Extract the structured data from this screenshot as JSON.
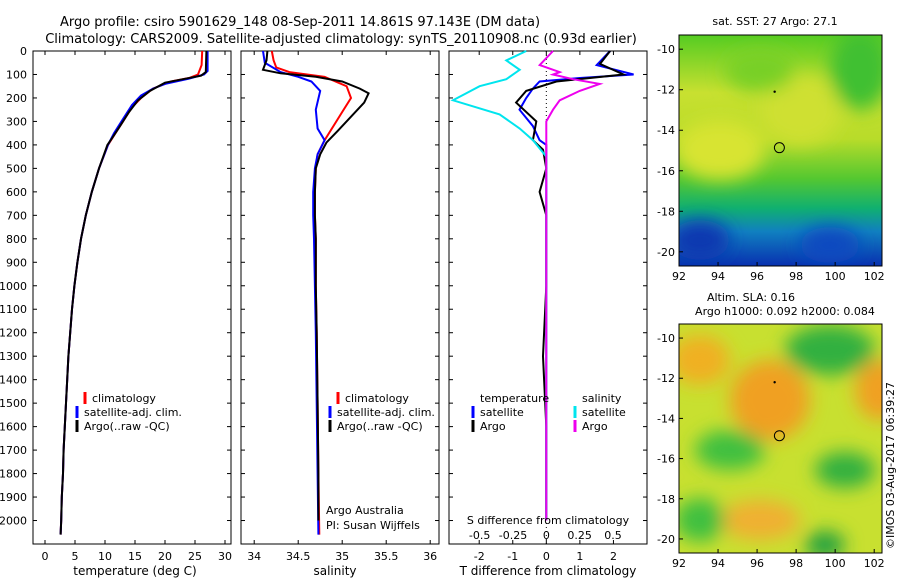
{
  "header": {
    "title_line1": "Argo profile: csiro 5901629_148 08-Sep-2011 14.861S 97.143E (DM data)",
    "title_line2": "Climatology: CARS2009. Satellite-adjusted climatology: synTS_20110908.nc (0.93d earlier)"
  },
  "side_text": {
    "stamp": "©IMOS 03-Aug-2017 06:39:27"
  },
  "colors": {
    "climatology": "#ff0000",
    "satellite": "#0000ff",
    "argo": "#000000",
    "salinity_satellite": "#00e5ee",
    "salinity_argo": "#ee00ee"
  },
  "chart_data": [
    {
      "type": "line",
      "id": "temperature",
      "xlabel": "temperature (deg C)",
      "ylim": [
        2100,
        0
      ],
      "xlim": [
        -2,
        31
      ],
      "x_ticks": [
        "0",
        "5",
        "10",
        "15",
        "20",
        "25",
        "30"
      ],
      "x_tick_values": [
        0,
        5,
        10,
        15,
        20,
        25,
        30
      ],
      "y_ticks": [
        "0",
        "100",
        "200",
        "300",
        "400",
        "500",
        "600",
        "700",
        "800",
        "900",
        "1000",
        "1100",
        "1200",
        "1300",
        "1400",
        "1500",
        "1600",
        "1700",
        "1800",
        "1900",
        "2000"
      ],
      "y_tick_values": [
        0,
        100,
        200,
        300,
        400,
        500,
        600,
        700,
        800,
        900,
        1000,
        1100,
        1200,
        1300,
        1400,
        1500,
        1600,
        1700,
        1800,
        1900,
        2000
      ],
      "legend": [
        "climatology",
        "satellite-adj. clim.",
        "Argo(..raw -QC)"
      ],
      "series": [
        {
          "name": "climatology",
          "color": "#ff0000",
          "points": [
            [
              26.2,
              0
            ],
            [
              26.1,
              60
            ],
            [
              25.5,
              100
            ],
            [
              24,
              115
            ],
            [
              21,
              130
            ],
            [
              18,
              160
            ],
            [
              16,
              200
            ],
            [
              14.5,
              240
            ],
            [
              13,
              300
            ],
            [
              11.5,
              360
            ],
            [
              10.5,
              400
            ],
            [
              9,
              500
            ],
            [
              7.8,
              600
            ],
            [
              6.8,
              700
            ],
            [
              6.0,
              800
            ],
            [
              5.4,
              900
            ],
            [
              4.9,
              1000
            ],
            [
              4.5,
              1100
            ],
            [
              4.2,
              1200
            ],
            [
              3.9,
              1300
            ],
            [
              3.7,
              1400
            ],
            [
              3.5,
              1500
            ],
            [
              3.3,
              1600
            ],
            [
              3.1,
              1700
            ],
            [
              3.0,
              1800
            ],
            [
              2.8,
              1900
            ],
            [
              2.7,
              2000
            ],
            [
              2.6,
              2060
            ]
          ]
        },
        {
          "name": "satellite-adj. clim.",
          "color": "#0000ff",
          "points": [
            [
              27.1,
              0
            ],
            [
              27.1,
              85
            ],
            [
              26.5,
              100
            ],
            [
              24,
              118
            ],
            [
              20,
              140
            ],
            [
              18,
              160
            ],
            [
              16,
              190
            ],
            [
              14.5,
              230
            ],
            [
              13,
              290
            ],
            [
              11.5,
              350
            ],
            [
              10.5,
              400
            ],
            [
              9,
              500
            ],
            [
              7.8,
              600
            ],
            [
              6.8,
              700
            ],
            [
              6.0,
              800
            ],
            [
              5.4,
              900
            ],
            [
              4.9,
              1000
            ],
            [
              4.5,
              1100
            ],
            [
              4.2,
              1200
            ],
            [
              3.9,
              1300
            ],
            [
              3.7,
              1400
            ],
            [
              3.5,
              1500
            ],
            [
              3.3,
              1600
            ],
            [
              3.1,
              1700
            ],
            [
              3.0,
              1800
            ],
            [
              2.8,
              1900
            ],
            [
              2.7,
              2000
            ],
            [
              2.6,
              2060
            ]
          ]
        },
        {
          "name": "Argo(..raw -QC)",
          "color": "#000000",
          "points": [
            [
              26.9,
              0
            ],
            [
              26.8,
              90
            ],
            [
              26,
              105
            ],
            [
              23,
              120
            ],
            [
              20,
              135
            ],
            [
              17.5,
              170
            ],
            [
              15.5,
              210
            ],
            [
              14,
              260
            ],
            [
              12.5,
              320
            ],
            [
              11.2,
              370
            ],
            [
              10.4,
              400
            ],
            [
              9,
              500
            ],
            [
              7.8,
              600
            ],
            [
              6.8,
              700
            ],
            [
              6.0,
              800
            ],
            [
              5.4,
              900
            ],
            [
              4.9,
              1000
            ],
            [
              4.5,
              1100
            ],
            [
              4.2,
              1200
            ],
            [
              3.9,
              1300
            ],
            [
              3.7,
              1400
            ],
            [
              3.5,
              1500
            ],
            [
              3.3,
              1600
            ],
            [
              3.1,
              1700
            ],
            [
              3.0,
              1800
            ],
            [
              2.8,
              1900
            ],
            [
              2.7,
              2000
            ],
            [
              2.6,
              2060
            ]
          ]
        }
      ]
    },
    {
      "type": "line",
      "id": "salinity",
      "xlabel": "salinity",
      "ylim": [
        2100,
        0
      ],
      "xlim": [
        33.85,
        36.1
      ],
      "x_ticks": [
        "34",
        "34.5",
        "35",
        "35.5",
        "36"
      ],
      "x_tick_values": [
        34,
        34.5,
        35,
        35.5,
        36
      ],
      "legend": [
        "climatology",
        "satellite-adj. clim.",
        "Argo(..raw -QC)"
      ],
      "annotation_line1": "Argo Australia",
      "annotation_line2": "PI: Susan Wijffels",
      "series": [
        {
          "name": "climatology",
          "color": "#ff0000",
          "points": [
            [
              34.2,
              0
            ],
            [
              34.22,
              40
            ],
            [
              34.25,
              70
            ],
            [
              34.4,
              90
            ],
            [
              34.8,
              110
            ],
            [
              35.05,
              150
            ],
            [
              35.1,
              200
            ],
            [
              35.0,
              260
            ],
            [
              34.9,
              320
            ],
            [
              34.8,
              380
            ],
            [
              34.72,
              440
            ],
            [
              34.7,
              500
            ],
            [
              34.69,
              600
            ],
            [
              34.69,
              700
            ],
            [
              34.7,
              800
            ],
            [
              34.7,
              1000
            ],
            [
              34.71,
              1200
            ],
            [
              34.72,
              1500
            ],
            [
              34.73,
              1800
            ],
            [
              34.74,
              2060
            ]
          ]
        },
        {
          "name": "satellite-adj. clim.",
          "color": "#0000ff",
          "points": [
            [
              34.1,
              0
            ],
            [
              34.12,
              50
            ],
            [
              34.3,
              90
            ],
            [
              34.5,
              110
            ],
            [
              34.65,
              130
            ],
            [
              34.75,
              170
            ],
            [
              34.7,
              250
            ],
            [
              34.72,
              330
            ],
            [
              34.8,
              380
            ],
            [
              34.72,
              440
            ],
            [
              34.69,
              500
            ],
            [
              34.67,
              600
            ],
            [
              34.67,
              700
            ],
            [
              34.68,
              800
            ],
            [
              34.69,
              1000
            ],
            [
              34.7,
              1200
            ],
            [
              34.71,
              1500
            ],
            [
              34.72,
              1800
            ],
            [
              34.73,
              2060
            ]
          ]
        },
        {
          "name": "Argo(..raw -QC)",
          "color": "#000000",
          "points": [
            [
              34.15,
              0
            ],
            [
              34.14,
              40
            ],
            [
              34.1,
              80
            ],
            [
              34.3,
              95
            ],
            [
              34.7,
              110
            ],
            [
              35.0,
              130
            ],
            [
              35.2,
              160
            ],
            [
              35.3,
              180
            ],
            [
              35.25,
              220
            ],
            [
              35.1,
              280
            ],
            [
              34.95,
              340
            ],
            [
              34.82,
              390
            ],
            [
              34.75,
              440
            ],
            [
              34.7,
              500
            ],
            [
              34.69,
              600
            ],
            [
              34.69,
              700
            ],
            [
              34.7,
              800
            ],
            [
              34.7,
              1000
            ],
            [
              34.71,
              1200
            ],
            [
              34.72,
              1500
            ],
            [
              34.73,
              1800
            ],
            [
              34.73,
              2000
            ]
          ]
        }
      ]
    },
    {
      "type": "line",
      "id": "difference",
      "xlabel": "T difference from climatology",
      "xlabel_top": "S difference from climatology",
      "ylim": [
        2100,
        0
      ],
      "xlim": [
        -2.9,
        3.0
      ],
      "x_ticks": [
        "-2",
        "-1",
        "0",
        "1",
        "2"
      ],
      "x_tick_values": [
        -2,
        -1,
        0,
        1,
        2
      ],
      "s_ticks": [
        "-0.5",
        "-0.25",
        "0",
        "0.25",
        "0.5"
      ],
      "s_tick_values": [
        -0.5,
        -0.25,
        0,
        0.25,
        0.5
      ],
      "legend_temperature": {
        "title": "temperature",
        "items": [
          "satellite",
          "Argo"
        ]
      },
      "legend_salinity": {
        "title": "salinity",
        "items": [
          "satellite",
          "Argo"
        ]
      },
      "series": [
        {
          "name": "temperature satellite",
          "color": "#0000ff",
          "points": [
            [
              1.9,
              0
            ],
            [
              1.5,
              60
            ],
            [
              2.6,
              100
            ],
            [
              1.0,
              115
            ],
            [
              -0.2,
              130
            ],
            [
              -0.4,
              160
            ],
            [
              -0.6,
              200
            ],
            [
              -0.8,
              250
            ],
            [
              -0.4,
              320
            ],
            [
              -0.2,
              380
            ],
            [
              0,
              400
            ],
            [
              0,
              1000
            ],
            [
              0,
              2000
            ]
          ]
        },
        {
          "name": "temperature Argo",
          "color": "#000000",
          "points": [
            [
              1.9,
              0
            ],
            [
              1.6,
              55
            ],
            [
              2.3,
              100
            ],
            [
              0.3,
              130
            ],
            [
              -0.6,
              170
            ],
            [
              -0.9,
              220
            ],
            [
              -0.3,
              300
            ],
            [
              -0.4,
              380
            ],
            [
              -0.1,
              420
            ],
            [
              0,
              500
            ],
            [
              -0.2,
              600
            ],
            [
              0,
              700
            ],
            [
              0,
              1000
            ],
            [
              -0.1,
              1300
            ],
            [
              0,
              1600
            ],
            [
              0,
              2000
            ]
          ]
        },
        {
          "name": "salinity satellite",
          "color": "#00e5ee",
          "s_points": [
            [
              -0.15,
              0
            ],
            [
              -0.3,
              40
            ],
            [
              -0.2,
              80
            ],
            [
              -0.3,
              120
            ],
            [
              -0.5,
              150
            ],
            [
              -0.6,
              180
            ],
            [
              -0.7,
              210
            ],
            [
              -0.35,
              270
            ],
            [
              -0.2,
              330
            ],
            [
              -0.1,
              380
            ],
            [
              0,
              450
            ],
            [
              0,
              900
            ],
            [
              0,
              2000
            ]
          ]
        },
        {
          "name": "salinity Argo",
          "color": "#ee00ee",
          "s_points": [
            [
              0.05,
              0
            ],
            [
              -0.05,
              60
            ],
            [
              0.1,
              90
            ],
            [
              0.05,
              100
            ],
            [
              0.2,
              120
            ],
            [
              0.4,
              140
            ],
            [
              0.25,
              170
            ],
            [
              0.1,
              210
            ],
            [
              0.05,
              250
            ],
            [
              0,
              300
            ],
            [
              0,
              600
            ],
            [
              0,
              1500
            ],
            [
              0,
              2000
            ]
          ]
        }
      ]
    },
    {
      "type": "heatmap",
      "id": "sst_map",
      "title": "sat. SST: 27 Argo: 27.1",
      "x_ticks": [
        "92",
        "94",
        "96",
        "98",
        "100",
        "102"
      ],
      "x_tick_values": [
        92,
        94,
        96,
        98,
        100,
        102
      ],
      "y_ticks": [
        "-10",
        "-12",
        "-14",
        "-16",
        "-18",
        "-20"
      ],
      "y_tick_values": [
        -10,
        -12,
        -14,
        -16,
        -18,
        -20
      ],
      "xlim": [
        92,
        102.4
      ],
      "ylim": [
        -20.7,
        -9.3
      ],
      "marker": [
        97.143,
        -14.861
      ],
      "dot": [
        96.9,
        -12.1
      ],
      "sst_value": 27,
      "argo_value": 27.1
    },
    {
      "type": "heatmap",
      "id": "sla_map",
      "title_line1": "Altim. SLA: 0.16",
      "title_line2": "Argo h1000: 0.092 h2000: 0.084",
      "x_ticks": [
        "92",
        "94",
        "96",
        "98",
        "100",
        "102"
      ],
      "x_tick_values": [
        92,
        94,
        96,
        98,
        100,
        102
      ],
      "y_ticks": [
        "-10",
        "-12",
        "-14",
        "-16",
        "-18",
        "-20"
      ],
      "y_tick_values": [
        -10,
        -12,
        -14,
        -16,
        -18,
        -20
      ],
      "xlim": [
        92,
        102.4
      ],
      "ylim": [
        -20.7,
        -9.3
      ],
      "marker": [
        97.143,
        -14.861
      ],
      "dot": [
        96.9,
        -12.2
      ],
      "sla": 0.16,
      "h1000": 0.092,
      "h2000": 0.084
    }
  ]
}
